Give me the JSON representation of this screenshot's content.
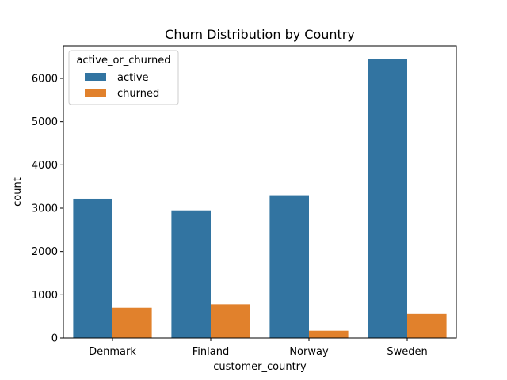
{
  "chart_data": {
    "type": "bar",
    "title": "Churn Distribution by Country",
    "xlabel": "customer_country",
    "ylabel": "count",
    "categories": [
      "Denmark",
      "Finland",
      "Norway",
      "Sweden"
    ],
    "ylim": [
      0,
      6750
    ],
    "yticks": [
      0,
      1000,
      2000,
      3000,
      4000,
      5000,
      6000
    ],
    "grid": false,
    "legend": {
      "title": "active_or_churned",
      "placement": "top-left"
    },
    "series": [
      {
        "name": "active",
        "color": "#3274a1",
        "values": [
          3220,
          2950,
          3300,
          6440
        ]
      },
      {
        "name": "churned",
        "color": "#e1812c",
        "values": [
          700,
          780,
          170,
          570
        ]
      }
    ]
  }
}
